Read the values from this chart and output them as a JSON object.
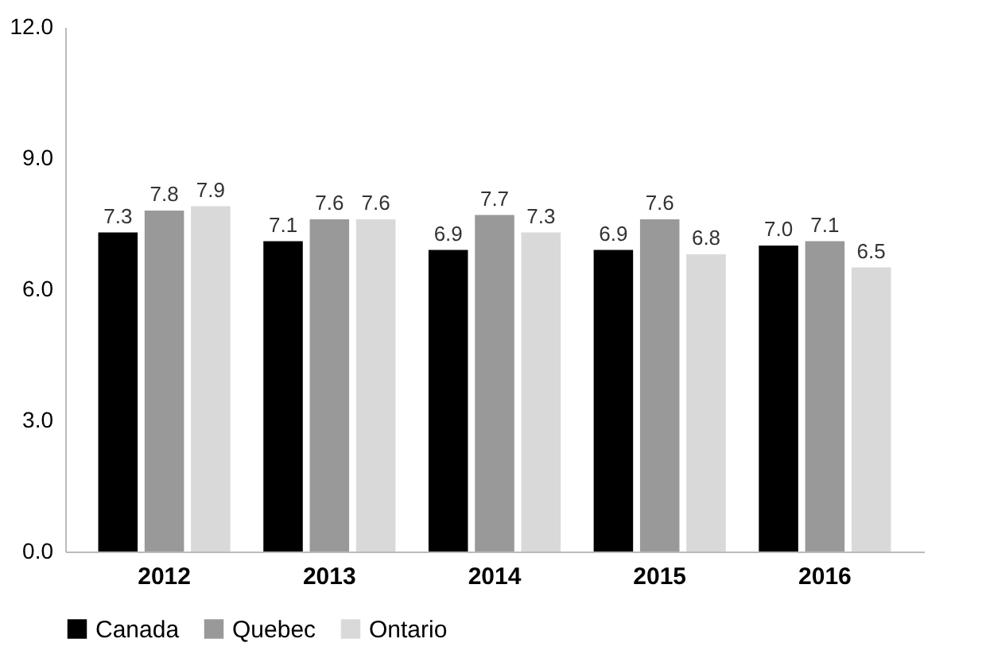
{
  "chart_data": {
    "type": "bar",
    "categories": [
      "2012",
      "2013",
      "2014",
      "2015",
      "2016"
    ],
    "series": [
      {
        "name": "Canada",
        "color": "#000000",
        "values": [
          7.3,
          7.1,
          6.9,
          6.9,
          7.0
        ],
        "value_labels": [
          "7.3",
          "7.1",
          "6.9",
          "6.9",
          "7.0"
        ]
      },
      {
        "name": "Quebec",
        "color": "#999999",
        "values": [
          7.8,
          7.6,
          7.7,
          7.6,
          7.1
        ],
        "value_labels": [
          "7.8",
          "7.6",
          "7.7",
          "7.6",
          "7.1"
        ]
      },
      {
        "name": "Ontario",
        "color": "#d9d9d9",
        "values": [
          7.9,
          7.6,
          7.3,
          6.8,
          6.5
        ],
        "value_labels": [
          "7.9",
          "7.6",
          "7.3",
          "6.8",
          "6.5"
        ]
      }
    ],
    "ylim": [
      0,
      12
    ],
    "yticks": [
      {
        "value": 0,
        "label": "0.0"
      },
      {
        "value": 3,
        "label": "3.0"
      },
      {
        "value": 6,
        "label": "6.0"
      },
      {
        "value": 9,
        "label": "9.0"
      },
      {
        "value": 12,
        "label": "12.0"
      }
    ],
    "grid": false,
    "legend": "bottom"
  }
}
